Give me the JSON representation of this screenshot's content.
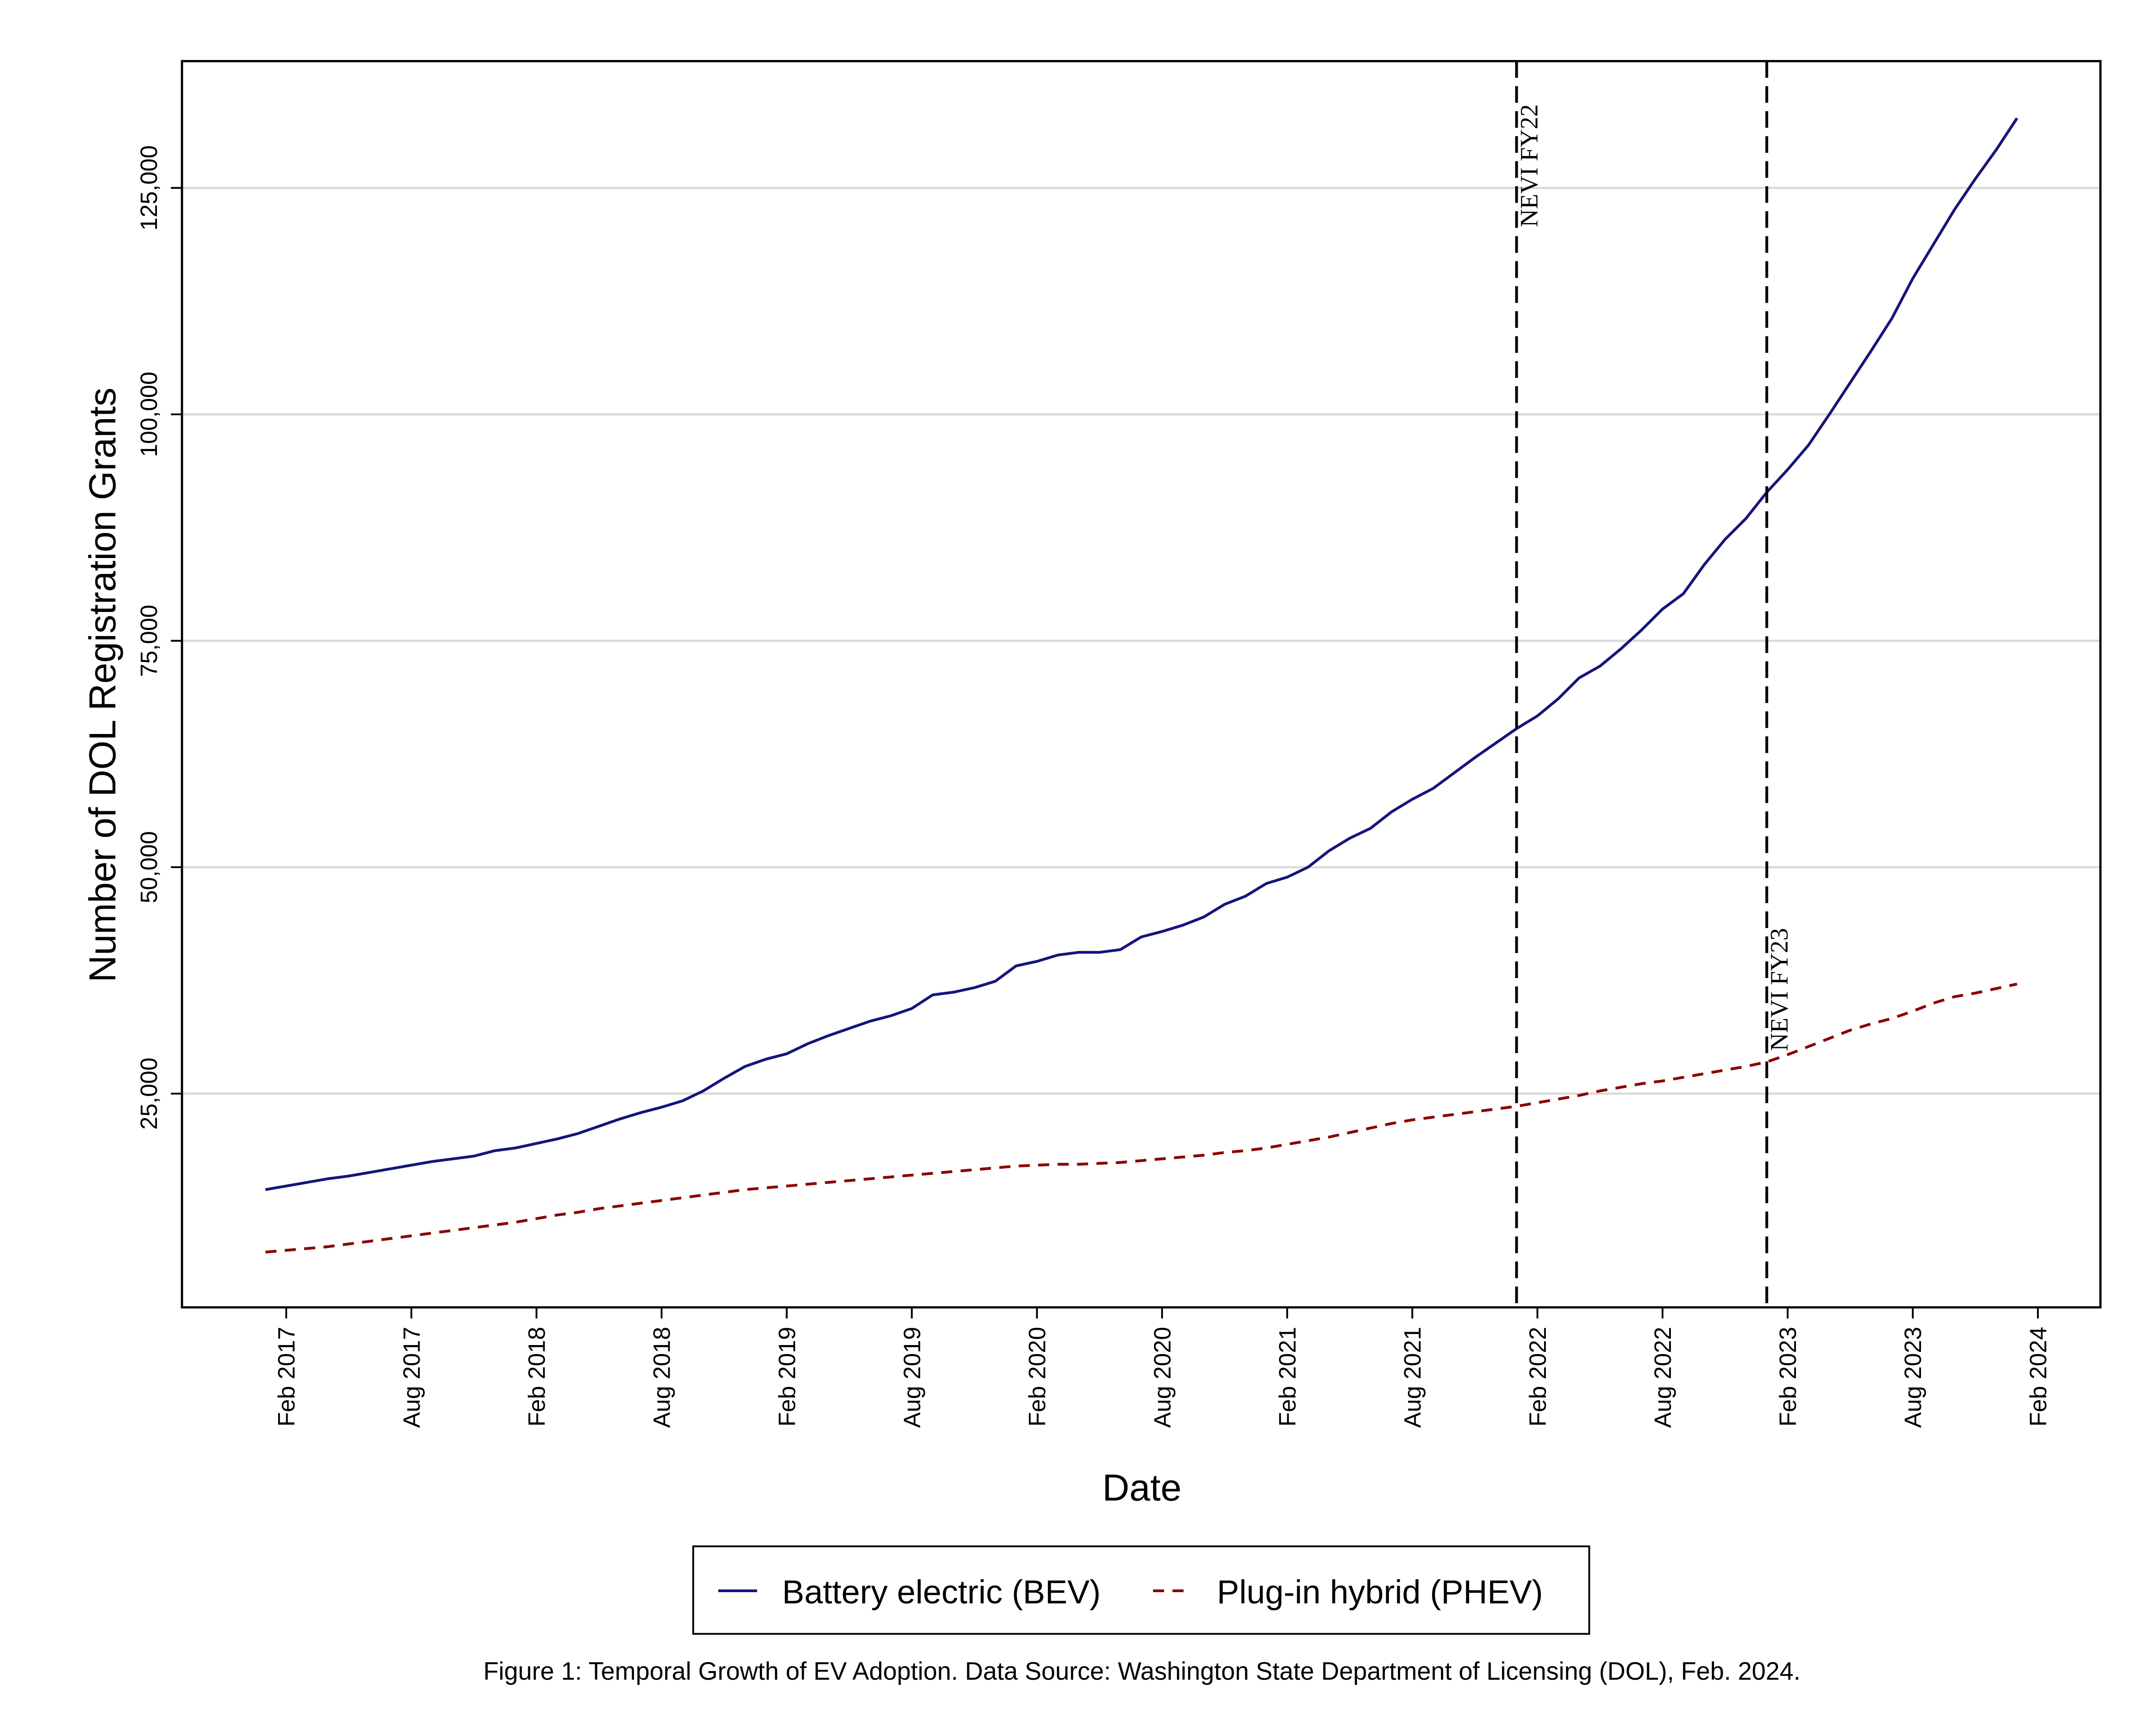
{
  "chart_data": {
    "type": "line",
    "x_label": "Date",
    "y_label": "Number of DOL Registration Grants",
    "caption": "Figure 1: Temporal Growth of EV Adoption. Data Source: Washington State Department of Licensing (DOL), Feb. 2024.",
    "x": [
      "2017-01",
      "2017-02",
      "2017-03",
      "2017-04",
      "2017-05",
      "2017-06",
      "2017-07",
      "2017-08",
      "2017-09",
      "2017-10",
      "2017-11",
      "2017-12",
      "2018-01",
      "2018-02",
      "2018-03",
      "2018-04",
      "2018-05",
      "2018-06",
      "2018-07",
      "2018-08",
      "2018-09",
      "2018-10",
      "2018-11",
      "2018-12",
      "2019-01",
      "2019-02",
      "2019-03",
      "2019-04",
      "2019-05",
      "2019-06",
      "2019-07",
      "2019-08",
      "2019-09",
      "2019-10",
      "2019-11",
      "2019-12",
      "2020-01",
      "2020-02",
      "2020-03",
      "2020-04",
      "2020-05",
      "2020-06",
      "2020-07",
      "2020-08",
      "2020-09",
      "2020-10",
      "2020-11",
      "2020-12",
      "2021-01",
      "2021-02",
      "2021-03",
      "2021-04",
      "2021-05",
      "2021-06",
      "2021-07",
      "2021-08",
      "2021-09",
      "2021-10",
      "2021-11",
      "2021-12",
      "2022-01",
      "2022-02",
      "2022-03",
      "2022-04",
      "2022-05",
      "2022-06",
      "2022-07",
      "2022-08",
      "2022-09",
      "2022-10",
      "2022-11",
      "2022-12",
      "2023-01",
      "2023-02",
      "2023-03",
      "2023-04",
      "2023-05",
      "2023-06",
      "2023-07",
      "2023-08",
      "2023-09",
      "2023-10",
      "2023-11",
      "2023-12",
      "2024-01"
    ],
    "series": [
      {
        "name": "Battery electric (BEV)",
        "color": "#15157a",
        "dash": "solid",
        "values": [
          14400,
          14800,
          15200,
          15600,
          15900,
          16300,
          16700,
          17100,
          17500,
          17800,
          18100,
          18700,
          19000,
          19500,
          20000,
          20600,
          21400,
          22200,
          22900,
          23500,
          24200,
          25300,
          26700,
          28000,
          28800,
          29400,
          30500,
          31400,
          32200,
          33000,
          33600,
          34400,
          35900,
          36200,
          36700,
          37400,
          39100,
          39600,
          40300,
          40600,
          40600,
          40900,
          42300,
          42900,
          43600,
          44500,
          45900,
          46800,
          48200,
          48900,
          50000,
          51800,
          53200,
          54300,
          56100,
          57500,
          58700,
          60400,
          62100,
          63700,
          65300,
          66700,
          68600,
          70900,
          72200,
          74100,
          76200,
          78500,
          80200,
          83400,
          86200,
          88500,
          91400,
          93900,
          96600,
          100000,
          103500,
          107000,
          110600,
          115000,
          118800,
          122600,
          126000,
          129200,
          132700
        ]
      },
      {
        "name": "Plug-in hybrid (PHEV)",
        "color": "#8b0000",
        "dash": "dashed",
        "values": [
          7500,
          7700,
          7900,
          8100,
          8400,
          8700,
          9000,
          9300,
          9600,
          9900,
          10200,
          10500,
          10800,
          11200,
          11600,
          11900,
          12300,
          12600,
          12900,
          13200,
          13500,
          13800,
          14100,
          14400,
          14600,
          14800,
          15000,
          15200,
          15400,
          15600,
          15800,
          16000,
          16200,
          16400,
          16600,
          16800,
          17000,
          17100,
          17200,
          17200,
          17300,
          17400,
          17600,
          17800,
          18000,
          18200,
          18500,
          18700,
          19000,
          19400,
          19800,
          20200,
          20700,
          21200,
          21700,
          22100,
          22400,
          22700,
          23000,
          23300,
          23600,
          24000,
          24400,
          24800,
          25300,
          25700,
          26100,
          26400,
          26800,
          27200,
          27600,
          28000,
          28500,
          29300,
          30200,
          31100,
          32000,
          32700,
          33300,
          34100,
          35000,
          35700,
          36100,
          36600,
          37100
        ]
      }
    ],
    "xlim": [
      "2016-09",
      "2024-05"
    ],
    "xticks": [
      {
        "value": "2017-02",
        "label": "Feb 2017"
      },
      {
        "value": "2017-08",
        "label": "Aug 2017"
      },
      {
        "value": "2018-02",
        "label": "Feb 2018"
      },
      {
        "value": "2018-08",
        "label": "Aug 2018"
      },
      {
        "value": "2019-02",
        "label": "Feb 2019"
      },
      {
        "value": "2019-08",
        "label": "Aug 2019"
      },
      {
        "value": "2020-02",
        "label": "Feb 2020"
      },
      {
        "value": "2020-08",
        "label": "Aug 2020"
      },
      {
        "value": "2021-02",
        "label": "Feb 2021"
      },
      {
        "value": "2021-08",
        "label": "Aug 2021"
      },
      {
        "value": "2022-02",
        "label": "Feb 2022"
      },
      {
        "value": "2022-08",
        "label": "Aug 2022"
      },
      {
        "value": "2023-02",
        "label": "Feb 2023"
      },
      {
        "value": "2023-08",
        "label": "Aug 2023"
      },
      {
        "value": "2024-02",
        "label": "Feb 2024"
      }
    ],
    "ylim": [
      1400,
      139000
    ],
    "yticks": [
      {
        "value": 25000,
        "label": "25,000"
      },
      {
        "value": 50000,
        "label": "50,000"
      },
      {
        "value": 75000,
        "label": "75,000"
      },
      {
        "value": 100000,
        "label": "100,000"
      },
      {
        "value": 125000,
        "label": "125,000"
      }
    ],
    "grid": true,
    "annotations": [
      {
        "x": "2022-01",
        "label": "NEVI FY22"
      },
      {
        "x": "2023-01",
        "label": "NEVI FY23"
      }
    ]
  }
}
